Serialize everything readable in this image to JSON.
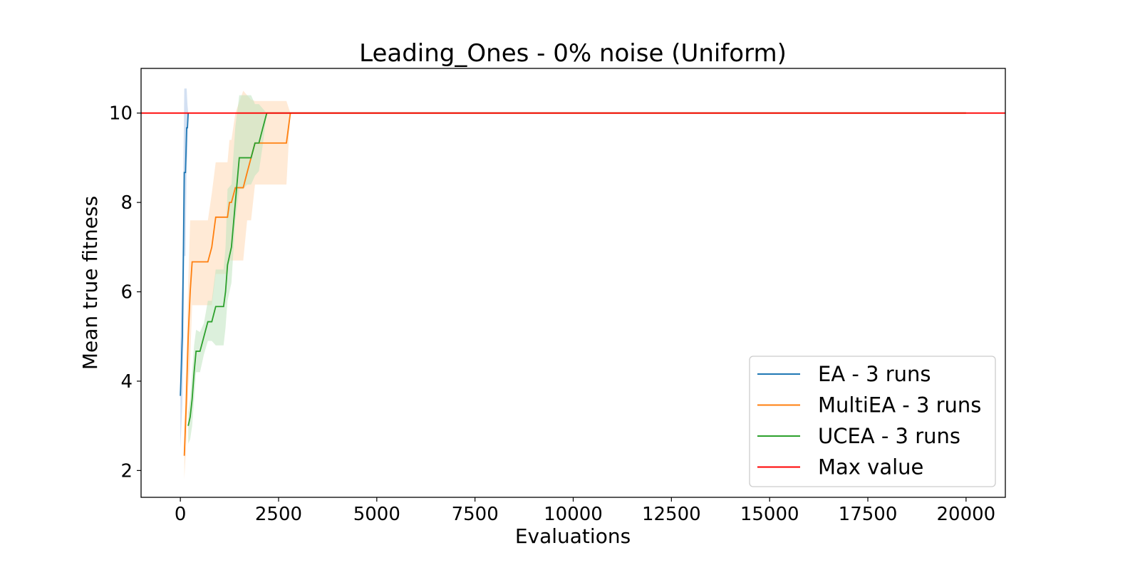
{
  "chart_data": {
    "type": "line",
    "title": "Leading_Ones - 0% noise (Uniform)",
    "xlabel": "Evaluations",
    "ylabel": "Mean true fitness",
    "xlim": [
      -1000,
      21000
    ],
    "ylim": [
      1.4,
      11.0
    ],
    "xticks": [
      0,
      2500,
      5000,
      7500,
      10000,
      12500,
      15000,
      17500,
      20000
    ],
    "yticks": [
      2,
      4,
      6,
      8,
      10
    ],
    "grid": false,
    "legend_position": "lower-right",
    "series": [
      {
        "name": "EA - 3 runs",
        "color": "#1f77b4",
        "band_color": "#aec7e8",
        "x": [
          0,
          50,
          80,
          100,
          130,
          160,
          180,
          200
        ],
        "y": [
          3.67,
          5.0,
          7.0,
          8.67,
          8.67,
          9.67,
          9.67,
          10.0
        ],
        "band_lower": [
          2.5,
          3.5,
          5.0,
          6.8,
          6.8,
          8.8,
          9.1,
          10.0
        ],
        "band_upper": [
          4.8,
          6.5,
          9.0,
          10.55,
          10.55,
          10.55,
          10.2,
          10.0
        ]
      },
      {
        "name": "MultiEA - 3 runs",
        "color": "#ff7f0e",
        "band_color": "#ffd8b4",
        "x": [
          100,
          150,
          200,
          250,
          300,
          450,
          700,
          800,
          900,
          1000,
          1200,
          1250,
          1300,
          1400,
          1600,
          1700,
          1800,
          1900,
          2000,
          2200,
          2700,
          2800,
          2900,
          20000
        ],
        "y": [
          2.33,
          3.5,
          5.0,
          6.0,
          6.67,
          6.67,
          6.67,
          7.0,
          7.67,
          7.67,
          7.67,
          8.0,
          8.0,
          8.33,
          8.33,
          8.67,
          9.0,
          9.33,
          9.33,
          9.33,
          9.33,
          10.0,
          10.0,
          10.0
        ],
        "band_lower": [
          1.8,
          2.6,
          3.8,
          4.5,
          5.7,
          5.7,
          5.7,
          5.7,
          6.4,
          6.4,
          6.4,
          6.7,
          6.7,
          6.7,
          6.7,
          7.6,
          7.6,
          8.4,
          8.4,
          8.4,
          8.4,
          10.0,
          10.0,
          10.0
        ],
        "band_upper": [
          2.9,
          4.5,
          6.2,
          7.6,
          7.6,
          7.6,
          7.6,
          8.2,
          8.9,
          8.9,
          8.9,
          9.4,
          9.4,
          10.0,
          10.5,
          10.4,
          10.3,
          10.27,
          10.27,
          10.27,
          10.27,
          10.0,
          10.0,
          10.0
        ]
      },
      {
        "name": "UCEA - 3 runs",
        "color": "#2ca02c",
        "band_color": "#bfe3bf",
        "x": [
          200,
          250,
          300,
          350,
          400,
          500,
          600,
          700,
          800,
          900,
          1100,
          1150,
          1200,
          1300,
          1400,
          1500,
          1600,
          1700,
          1800,
          1900,
          2000,
          2100,
          2200,
          20000
        ],
        "y": [
          3.0,
          3.2,
          3.6,
          4.2,
          4.67,
          4.67,
          5.0,
          5.33,
          5.33,
          5.67,
          5.67,
          6.0,
          6.6,
          7.0,
          8.0,
          9.0,
          9.0,
          9.0,
          9.0,
          9.33,
          9.33,
          9.67,
          10.0,
          10.0
        ],
        "band_lower": [
          2.6,
          2.7,
          3.0,
          3.6,
          4.2,
          4.2,
          4.6,
          4.9,
          4.9,
          4.8,
          4.8,
          5.2,
          5.8,
          6.2,
          7.6,
          8.3,
          8.3,
          8.4,
          8.4,
          8.6,
          8.7,
          9.3,
          10.0,
          10.0
        ],
        "band_upper": [
          3.3,
          3.6,
          4.2,
          4.8,
          5.15,
          5.1,
          5.3,
          5.8,
          5.8,
          6.5,
          6.5,
          7.0,
          8.3,
          8.4,
          9.7,
          10.4,
          10.4,
          10.4,
          10.4,
          10.2,
          10.2,
          10.1,
          10.0,
          10.0
        ]
      },
      {
        "name": "Max value",
        "color": "#ff0000",
        "type": "hline",
        "y_value": 10
      }
    ]
  }
}
